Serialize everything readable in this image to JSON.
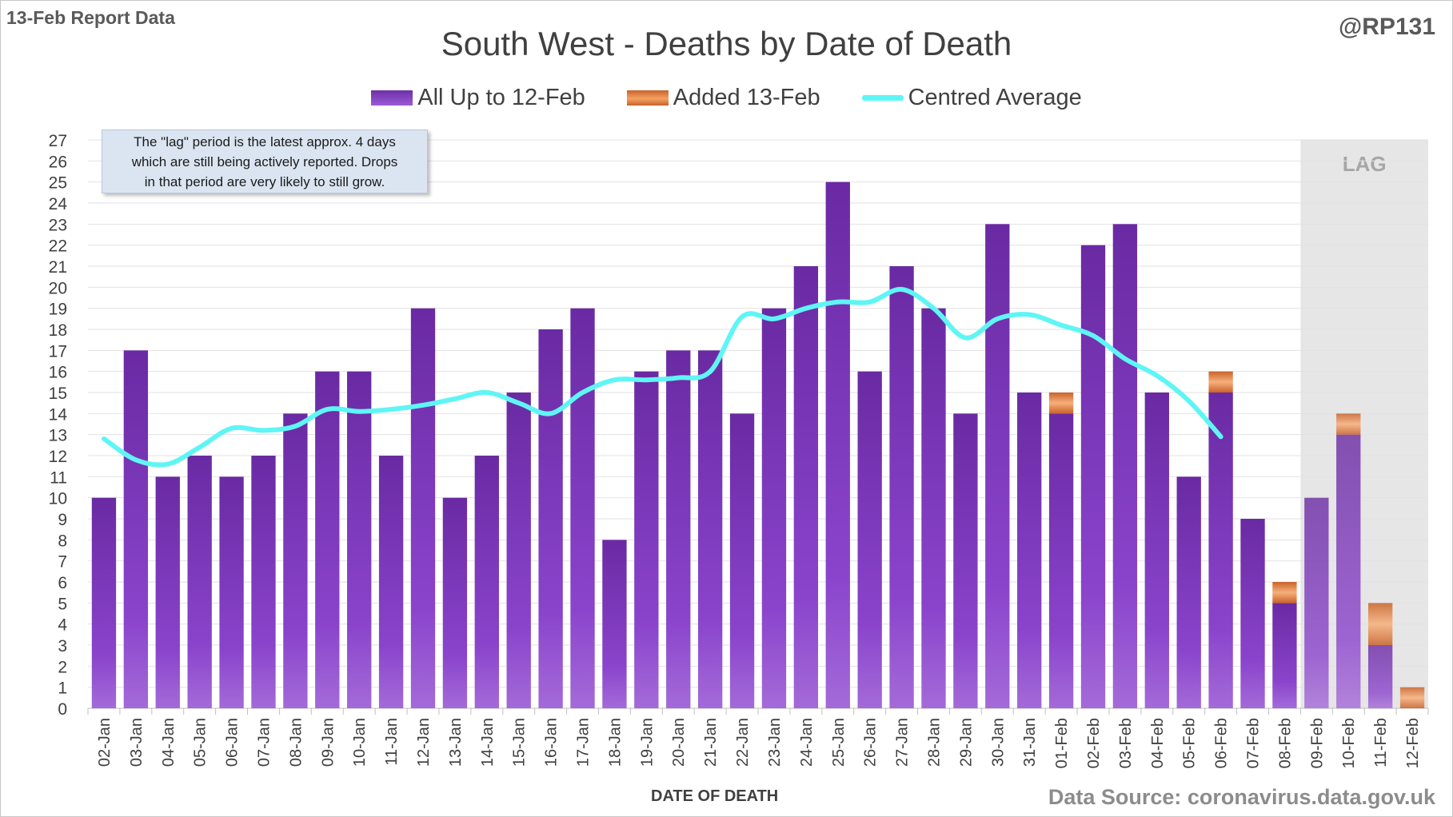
{
  "header": {
    "report_label": "13-Feb Report Data",
    "handle": "@RP131",
    "source": "Data Source: coronavirus.data.gov.uk"
  },
  "annotation": {
    "lines": [
      "The \"lag\" period is the latest approx. 4 days",
      "which are still being actively reported. Drops",
      "in that period are very likely to still grow."
    ],
    "lag_label": "LAG"
  },
  "colors": {
    "bar_base": "#7030a0",
    "bar_light": "#9b5bd6",
    "added": "#f4a262",
    "added_dark": "#c9622a",
    "average_line": "#5ff5f5",
    "lag_shade": "#e6e6e6"
  },
  "chart_data": {
    "type": "bar",
    "stacked": true,
    "title": "South West - Deaths by Date of Death",
    "xlabel": "DATE OF DEATH",
    "ylabel": "",
    "ylim": [
      0,
      27
    ],
    "grid": true,
    "legend_position": "top-center",
    "lag_period": [
      "09-Feb",
      "12-Feb"
    ],
    "categories": [
      "02-Jan",
      "03-Jan",
      "04-Jan",
      "05-Jan",
      "06-Jan",
      "07-Jan",
      "08-Jan",
      "09-Jan",
      "10-Jan",
      "11-Jan",
      "12-Jan",
      "13-Jan",
      "14-Jan",
      "15-Jan",
      "16-Jan",
      "17-Jan",
      "18-Jan",
      "19-Jan",
      "20-Jan",
      "21-Jan",
      "22-Jan",
      "23-Jan",
      "24-Jan",
      "25-Jan",
      "26-Jan",
      "27-Jan",
      "28-Jan",
      "29-Jan",
      "30-Jan",
      "31-Jan",
      "01-Feb",
      "02-Feb",
      "03-Feb",
      "04-Feb",
      "05-Feb",
      "06-Feb",
      "07-Feb",
      "08-Feb",
      "09-Feb",
      "10-Feb",
      "11-Feb",
      "12-Feb"
    ],
    "series": [
      {
        "name": "All Up to 12-Feb",
        "type": "bar",
        "values": [
          10,
          17,
          11,
          12,
          11,
          12,
          14,
          16,
          16,
          12,
          19,
          10,
          12,
          15,
          18,
          19,
          8,
          16,
          17,
          17,
          14,
          19,
          21,
          25,
          16,
          21,
          19,
          14,
          23,
          15,
          14,
          22,
          23,
          15,
          11,
          15,
          9,
          5,
          10,
          13,
          3,
          0
        ]
      },
      {
        "name": "Added 13-Feb",
        "type": "bar",
        "values": [
          0,
          0,
          0,
          0,
          0,
          0,
          0,
          0,
          0,
          0,
          0,
          0,
          0,
          0,
          0,
          0,
          0,
          0,
          0,
          0,
          0,
          0,
          0,
          0,
          0,
          0,
          0,
          0,
          0,
          0,
          1,
          0,
          0,
          0,
          0,
          1,
          0,
          1,
          0,
          1,
          2,
          1
        ]
      },
      {
        "name": "Centred Average",
        "type": "line",
        "values": [
          12.8,
          11.8,
          11.6,
          12.4,
          13.3,
          13.2,
          13.4,
          14.2,
          14.1,
          14.2,
          14.4,
          14.7,
          15.0,
          14.5,
          14.0,
          15.0,
          15.6,
          15.6,
          15.7,
          16.0,
          18.6,
          18.5,
          19.0,
          19.3,
          19.3,
          19.9,
          19.0,
          17.6,
          18.5,
          18.7,
          18.2,
          17.7,
          16.6,
          15.8,
          14.6,
          12.9,
          null,
          null,
          null,
          null,
          null,
          null
        ]
      }
    ]
  }
}
